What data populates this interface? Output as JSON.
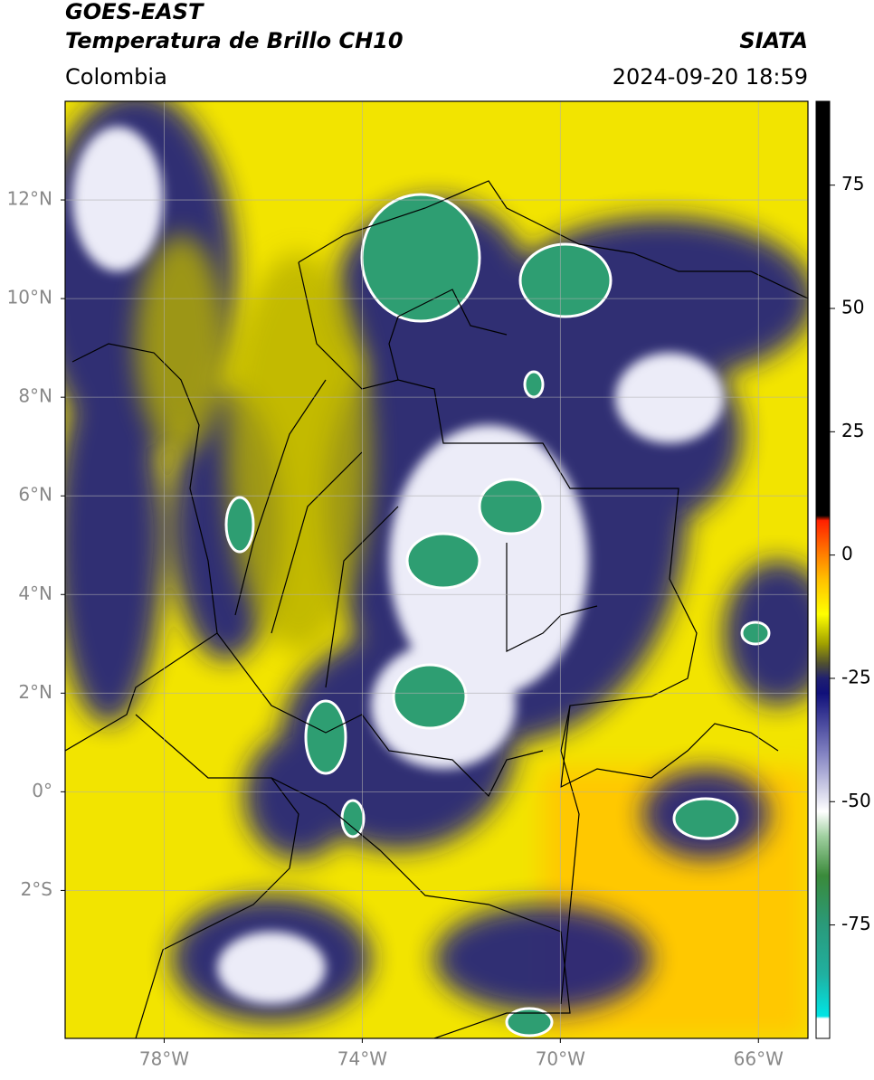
{
  "header": {
    "title": "GOES-EAST",
    "subtitle": "Temperatura de Brillo CH10",
    "source": "SIATA",
    "region": "Colombia",
    "datetime": "2024-09-20 18:59"
  },
  "map": {
    "xlim": [
      -80,
      -65
    ],
    "ylim": [
      -5,
      14
    ],
    "grid": true,
    "xticks": [
      {
        "value": -78,
        "label": "78°W"
      },
      {
        "value": -74,
        "label": "74°W"
      },
      {
        "value": -70,
        "label": "70°W"
      },
      {
        "value": -66,
        "label": "66°W"
      }
    ],
    "yticks": [
      {
        "value": 12,
        "label": "12°N"
      },
      {
        "value": 10,
        "label": "10°N"
      },
      {
        "value": 8,
        "label": "8°N"
      },
      {
        "value": 6,
        "label": "6°N"
      },
      {
        "value": 4,
        "label": "4°N"
      },
      {
        "value": 2,
        "label": "2°N"
      },
      {
        "value": 0,
        "label": "0°"
      },
      {
        "value": -2,
        "label": "2°S"
      }
    ]
  },
  "colorbar": {
    "lim": [
      -98,
      92
    ],
    "ticks": [
      75,
      50,
      25,
      0,
      -25,
      -50,
      -75
    ],
    "stops": [
      {
        "value": -98,
        "color": "#ffffff"
      },
      {
        "value": -94,
        "color": "#ffffff"
      },
      {
        "value": -93.5,
        "color": "#00e5e5"
      },
      {
        "value": -85,
        "color": "#20b0a0"
      },
      {
        "value": -75,
        "color": "#2a9a7a"
      },
      {
        "value": -65,
        "color": "#3a8a3a"
      },
      {
        "value": -57,
        "color": "#a0d0a0"
      },
      {
        "value": -52,
        "color": "#ffffff"
      },
      {
        "value": -40,
        "color": "#8080c0"
      },
      {
        "value": -28,
        "color": "#10107a"
      },
      {
        "value": -25,
        "color": "#202070"
      },
      {
        "value": -22,
        "color": "#505030"
      },
      {
        "value": -18,
        "color": "#a0a000"
      },
      {
        "value": -12,
        "color": "#ffff00"
      },
      {
        "value": -5,
        "color": "#ffc000"
      },
      {
        "value": 0,
        "color": "#ff8000"
      },
      {
        "value": 7,
        "color": "#ff2000"
      },
      {
        "value": 8,
        "color": "#000000"
      },
      {
        "value": 92,
        "color": "#000000"
      }
    ]
  }
}
